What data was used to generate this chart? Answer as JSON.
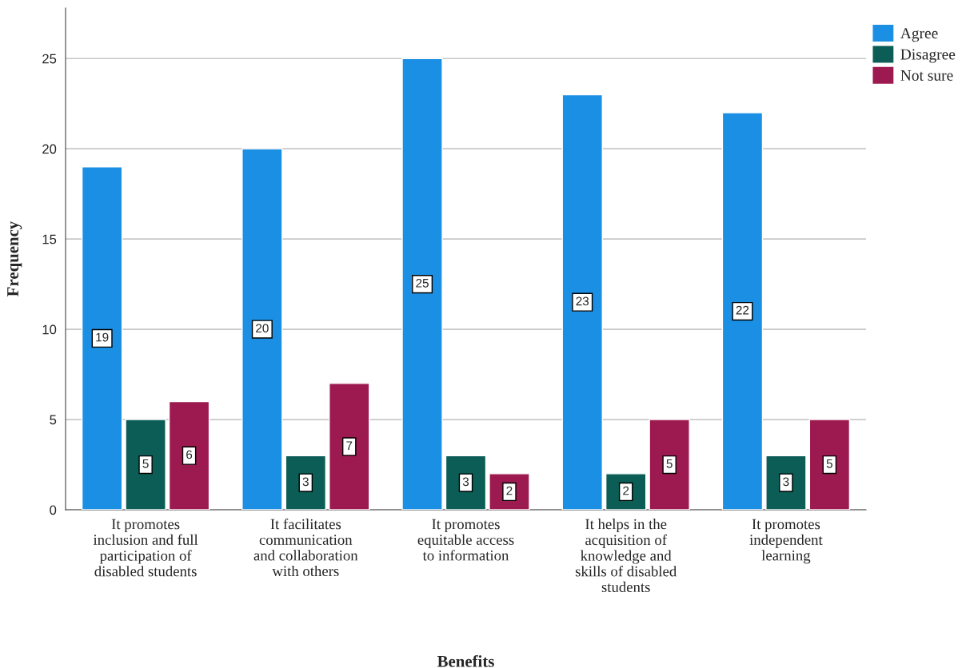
{
  "chart_data": {
    "type": "bar",
    "xlabel": "Benefits",
    "ylabel": "Frequency",
    "categories": [
      "It promotes\ninclusion and full\nparticipation of\ndisabled students",
      "It facilitates\ncommunication\nand collaboration\nwith others",
      "It promotes\nequitable access\nto information",
      "It helps in the\nacquisition of\nknowledge and\nskills of disabled\nstudents",
      "It promotes\nindependent\nlearning"
    ],
    "series": [
      {
        "name": "Agree",
        "color": "#1b8fe3",
        "values": [
          19,
          20,
          25,
          23,
          22
        ]
      },
      {
        "name": "Disagree",
        "color": "#0b5d56",
        "values": [
          5,
          3,
          3,
          2,
          3
        ]
      },
      {
        "name": "Not sure",
        "color": "#9c1a4f",
        "values": [
          6,
          7,
          2,
          5,
          5
        ]
      }
    ],
    "ylim": [
      0,
      27.8
    ],
    "yticks": [
      0,
      5,
      10,
      15,
      20,
      25
    ],
    "grid": "y",
    "legend": "top right",
    "data_labels": true
  }
}
